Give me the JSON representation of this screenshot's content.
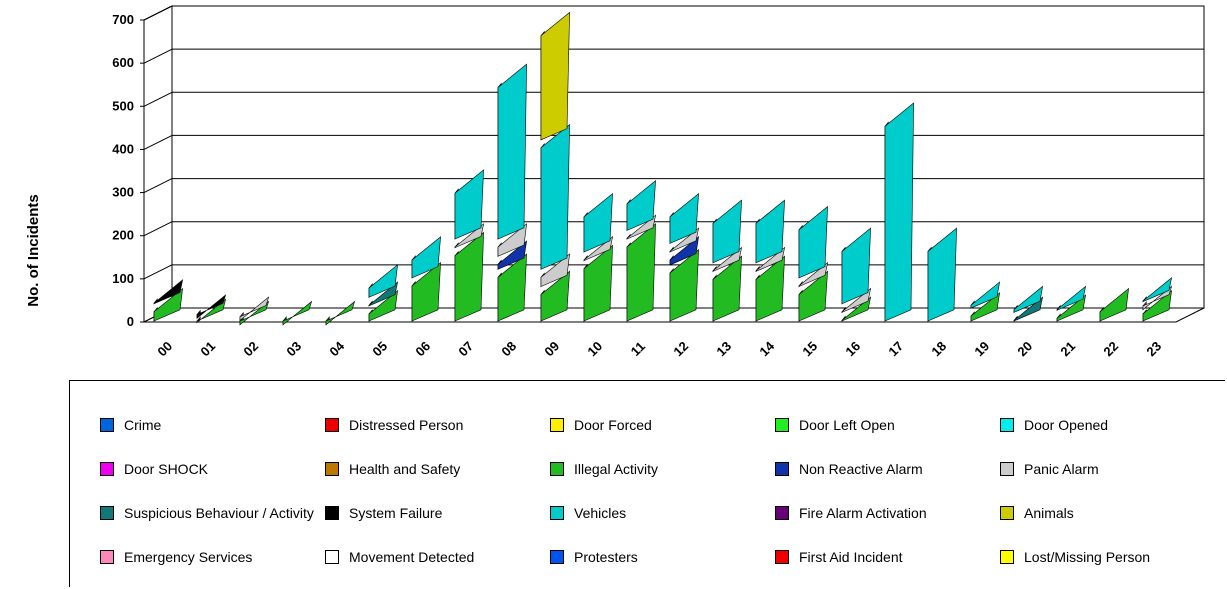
{
  "chart_data": {
    "type": "bar",
    "title": "",
    "ylabel": "No. of Incidents",
    "xlabel": "",
    "ylim": [
      0,
      700
    ],
    "yticks": [
      "0",
      "100",
      "200",
      "300",
      "400",
      "500",
      "600",
      "700"
    ],
    "grid": true,
    "legend_position": "bottom",
    "categories": [
      "00",
      "01",
      "02",
      "03",
      "04",
      "05",
      "06",
      "07",
      "08",
      "09",
      "10",
      "11",
      "12",
      "13",
      "14",
      "15",
      "16",
      "17",
      "18",
      "19",
      "20",
      "21",
      "22",
      "23"
    ],
    "series": [
      {
        "name": "Crime",
        "color": "#0066dd",
        "values": [
          0,
          0,
          0,
          0,
          0,
          0,
          0,
          0,
          0,
          0,
          0,
          0,
          0,
          0,
          0,
          0,
          0,
          0,
          0,
          0,
          0,
          0,
          0,
          0
        ]
      },
      {
        "name": "Distressed Person",
        "color": "#ee0000",
        "values": [
          0,
          0,
          0,
          0,
          0,
          0,
          0,
          0,
          0,
          0,
          0,
          0,
          0,
          0,
          0,
          0,
          0,
          0,
          0,
          0,
          0,
          0,
          0,
          0
        ]
      },
      {
        "name": "Door Forced",
        "color": "#ffee00",
        "values": [
          0,
          0,
          0,
          0,
          0,
          0,
          0,
          0,
          0,
          0,
          0,
          0,
          0,
          0,
          0,
          0,
          0,
          0,
          0,
          0,
          0,
          0,
          0,
          0
        ]
      },
      {
        "name": "Door Left Open",
        "color": "#22ee22",
        "values": [
          0,
          0,
          0,
          0,
          0,
          0,
          0,
          0,
          0,
          0,
          0,
          0,
          0,
          0,
          0,
          0,
          0,
          0,
          0,
          0,
          0,
          0,
          0,
          0
        ]
      },
      {
        "name": "Door Opened",
        "color": "#00eeee",
        "values": [
          0,
          0,
          0,
          0,
          0,
          0,
          0,
          0,
          0,
          0,
          0,
          0,
          0,
          0,
          0,
          0,
          0,
          0,
          0,
          0,
          0,
          0,
          0,
          0
        ]
      },
      {
        "name": "Door SHOCK",
        "color": "#ee00ee",
        "values": [
          0,
          0,
          0,
          0,
          0,
          0,
          0,
          0,
          0,
          0,
          0,
          0,
          0,
          0,
          0,
          0,
          0,
          0,
          0,
          0,
          0,
          0,
          0,
          0
        ]
      },
      {
        "name": "Health and Safety",
        "color": "#bb7700",
        "values": [
          0,
          0,
          0,
          0,
          0,
          0,
          0,
          0,
          0,
          0,
          0,
          0,
          0,
          0,
          0,
          0,
          0,
          0,
          0,
          0,
          0,
          0,
          0,
          0
        ]
      },
      {
        "name": "Illegal Activity",
        "color": "#22bb22",
        "values": [
          40,
          15,
          10,
          10,
          10,
          35,
          100,
          170,
          120,
          80,
          140,
          190,
          130,
          115,
          115,
          80,
          20,
          0,
          0,
          30,
          0,
          25,
          40,
          35
        ]
      },
      {
        "name": "Non Reactive Alarm",
        "color": "#1133aa",
        "values": [
          0,
          0,
          0,
          0,
          0,
          0,
          0,
          0,
          30,
          0,
          0,
          0,
          30,
          0,
          0,
          0,
          0,
          0,
          0,
          0,
          0,
          0,
          0,
          0
        ]
      },
      {
        "name": "Panic Alarm",
        "color": "#cccccc",
        "values": [
          0,
          0,
          10,
          0,
          0,
          0,
          0,
          20,
          40,
          40,
          20,
          20,
          20,
          20,
          20,
          20,
          20,
          0,
          0,
          0,
          0,
          0,
          0,
          10
        ]
      },
      {
        "name": "Suspicious Behaviour / Activity",
        "color": "#117777",
        "values": [
          0,
          0,
          0,
          0,
          0,
          20,
          0,
          0,
          0,
          0,
          0,
          0,
          0,
          0,
          0,
          0,
          0,
          0,
          0,
          0,
          20,
          0,
          0,
          0
        ]
      },
      {
        "name": "System Failure",
        "color": "#000000",
        "values": [
          20,
          10,
          0,
          0,
          0,
          0,
          0,
          0,
          0,
          0,
          0,
          0,
          0,
          0,
          0,
          0,
          0,
          0,
          0,
          0,
          0,
          0,
          0,
          0
        ]
      },
      {
        "name": "Vehicles",
        "color": "#00cccc",
        "values": [
          0,
          0,
          0,
          0,
          0,
          40,
          60,
          125,
          370,
          300,
          100,
          80,
          80,
          110,
          110,
          130,
          140,
          470,
          180,
          25,
          25,
          20,
          0,
          20
        ]
      },
      {
        "name": "Fire Alarm Activation",
        "color": "#660077",
        "values": [
          0,
          0,
          0,
          0,
          0,
          0,
          0,
          0,
          0,
          0,
          0,
          0,
          0,
          0,
          0,
          0,
          0,
          0,
          0,
          0,
          0,
          0,
          0,
          0
        ]
      },
      {
        "name": "Animals",
        "color": "#cccc00",
        "values": [
          0,
          0,
          0,
          0,
          0,
          0,
          0,
          0,
          0,
          260,
          0,
          0,
          0,
          0,
          0,
          0,
          0,
          0,
          0,
          0,
          0,
          0,
          0,
          0
        ]
      },
      {
        "name": "Emergency Services",
        "color": "#ff88bb",
        "values": [
          0,
          0,
          0,
          0,
          0,
          0,
          0,
          0,
          0,
          0,
          0,
          0,
          0,
          0,
          0,
          0,
          0,
          0,
          0,
          0,
          0,
          0,
          0,
          0
        ]
      },
      {
        "name": "Movement Detected",
        "color": "#ffffff",
        "values": [
          0,
          0,
          0,
          0,
          0,
          0,
          0,
          0,
          0,
          0,
          0,
          0,
          0,
          0,
          0,
          0,
          0,
          0,
          0,
          0,
          0,
          0,
          0,
          0
        ]
      },
      {
        "name": "Protesters",
        "color": "#0055ee",
        "values": [
          0,
          0,
          0,
          0,
          0,
          0,
          0,
          0,
          0,
          0,
          0,
          0,
          0,
          0,
          0,
          0,
          0,
          0,
          0,
          0,
          0,
          0,
          0,
          0
        ]
      },
      {
        "name": "First Aid Incident",
        "color": "#ee0000",
        "values": [
          0,
          0,
          0,
          0,
          0,
          0,
          0,
          0,
          0,
          0,
          0,
          0,
          0,
          0,
          0,
          0,
          0,
          0,
          0,
          0,
          0,
          0,
          0,
          0
        ]
      },
      {
        "name": "Lost/Missing Person",
        "color": "#ffff00",
        "values": [
          0,
          0,
          0,
          0,
          0,
          0,
          0,
          0,
          0,
          0,
          0,
          0,
          0,
          0,
          0,
          0,
          0,
          0,
          0,
          0,
          0,
          0,
          0,
          0
        ]
      }
    ]
  }
}
